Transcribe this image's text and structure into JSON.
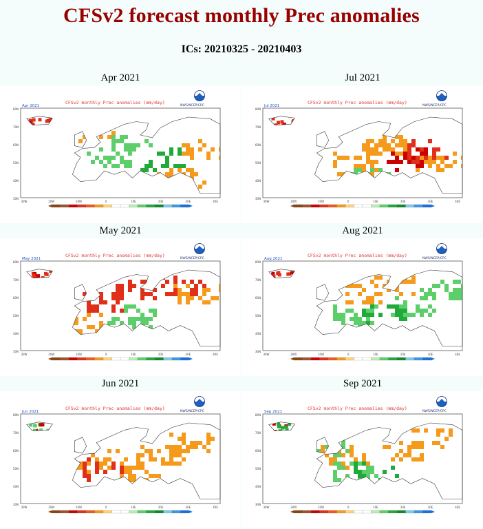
{
  "title": "CFSv2 forecast monthly Prec anomalies",
  "subtitle": "ICs: 20210325 - 20210403",
  "colors": {
    "title": "#990000",
    "dry_strong": "#cc0000",
    "dry_mid": "#e0301a",
    "dry_light": "#f59a1a",
    "wet_light": "#5ccf6a",
    "wet_mid": "#1faa3a",
    "wet_strong": "#1a6fe0"
  },
  "panels": [
    {
      "month": "Apr 2021",
      "map_title": "CFSv2 monthly Prec anomalies (mm/day)",
      "map_label": "Apr 2021",
      "credit": "NWS/NCEP/CPC",
      "pattern": "wet"
    },
    {
      "month": "Jul 2021",
      "map_title": "CFSv2 monthly Prec anomalies (mm/day)",
      "map_label": "Jul 2021",
      "credit": "NWS/NCEP/CPC",
      "pattern": "dry-east"
    },
    {
      "month": "May 2021",
      "map_title": "CFSv2 monthly Prec anomalies (mm/day)",
      "map_label": "May 2021",
      "credit": "NWS/NCEP/CPC",
      "pattern": "dry-ne"
    },
    {
      "month": "Aug 2021",
      "map_title": "CFSv2 monthly Prec anomalies (mm/day)",
      "map_label": "Aug 2021",
      "credit": "NWS/NCEP/CPC",
      "pattern": "wet-central"
    },
    {
      "month": "Jun 2021",
      "map_title": "CFSv2 monthly Prec anomalies (mm/day)",
      "map_label": "Jun 2021",
      "credit": "NWS/NCEP/CPC",
      "pattern": "dry-scattered"
    },
    {
      "month": "Sep 2021",
      "map_title": "CFSv2 monthly Prec anomalies (mm/day)",
      "map_label": "Sep 2021",
      "credit": "NWS/NCEP/CPC",
      "pattern": "wet-south"
    }
  ],
  "lat_labels": [
    "80N",
    "70N",
    "60N",
    "50N",
    "40N",
    "30N"
  ],
  "lon_labels": [
    "30W",
    "20W",
    "10W",
    "0",
    "10E",
    "20E",
    "30E",
    "40E"
  ],
  "colorbar_colors": [
    "#8b4513",
    "#a0522d",
    "#cc0000",
    "#e0301a",
    "#f05a1a",
    "#f59a1a",
    "#ffd27a",
    "#ffffff",
    "#ffffff",
    "#b9f0b0",
    "#5ccf6a",
    "#1faa3a",
    "#0f8a2a",
    "#7ec8f0",
    "#3a9ae0",
    "#1a6fe0"
  ]
}
